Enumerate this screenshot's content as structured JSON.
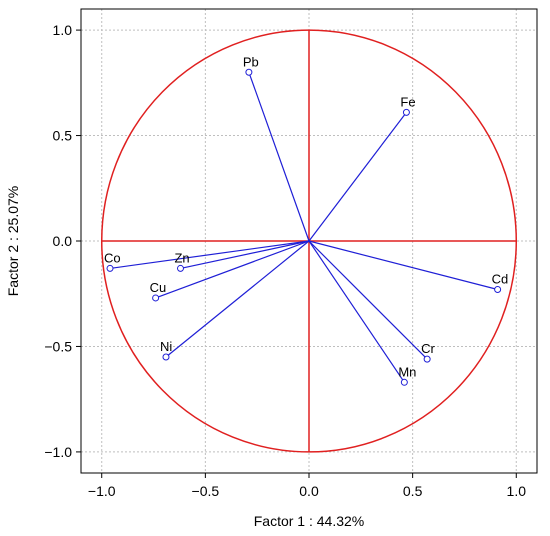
{
  "chart_data": {
    "type": "scatter",
    "subtype": "pca-correlation-circle",
    "xlabel": "Factor 1 : 44.32%",
    "ylabel": "Factor 2 : 25.07%",
    "xlim": [
      -1.1,
      1.1
    ],
    "ylim": [
      -1.1,
      1.1
    ],
    "xticks": [
      -1.0,
      -0.5,
      0.0,
      0.5,
      1.0
    ],
    "yticks": [
      -1.0,
      -0.5,
      0.0,
      0.5,
      1.0
    ],
    "xtick_labels": [
      "−1.0",
      "−0.5",
      "0.0",
      "0.5",
      "1.0"
    ],
    "ytick_labels": [
      "−1.0",
      "−0.5",
      "0.0",
      "0.5",
      "1.0"
    ],
    "grid": true,
    "circle_radius": 1.0,
    "colors": {
      "vectors": "#1f1fd6",
      "circle": "#e02020",
      "axes": "#e02020",
      "grid": "#bfbfbf"
    },
    "points": [
      {
        "label": "Pb",
        "x": -0.29,
        "y": 0.8
      },
      {
        "label": "Fe",
        "x": 0.47,
        "y": 0.61
      },
      {
        "label": "Co",
        "x": -0.96,
        "y": -0.13
      },
      {
        "label": "Zn",
        "x": -0.62,
        "y": -0.13
      },
      {
        "label": "Cu",
        "x": -0.74,
        "y": -0.27
      },
      {
        "label": "Ni",
        "x": -0.69,
        "y": -0.55
      },
      {
        "label": "Cd",
        "x": 0.91,
        "y": -0.23
      },
      {
        "label": "Cr",
        "x": 0.57,
        "y": -0.56
      },
      {
        "label": "Mn",
        "x": 0.46,
        "y": -0.67
      }
    ]
  }
}
